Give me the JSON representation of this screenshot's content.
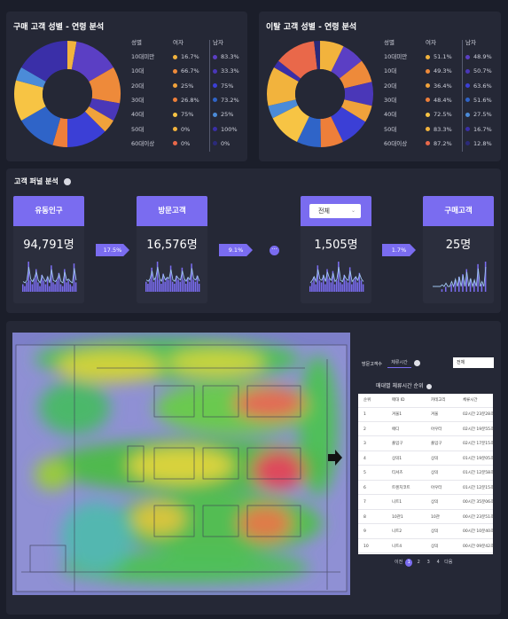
{
  "donut_left": {
    "title": "구매 고객 성별 - 연령 분석",
    "headers": [
      "성별",
      "여자",
      "남자"
    ],
    "rows": [
      {
        "age": "10대미만",
        "female": "16.7%",
        "male": "83.3%"
      },
      {
        "age": "10대",
        "female": "66.7%",
        "male": "33.3%"
      },
      {
        "age": "20대",
        "female": "25%",
        "male": "75%"
      },
      {
        "age": "30대",
        "female": "26.8%",
        "male": "73.2%"
      },
      {
        "age": "40대",
        "female": "75%",
        "male": "25%"
      },
      {
        "age": "50대",
        "female": "0%",
        "male": "100%"
      },
      {
        "age": "60대이상",
        "female": "0%",
        "male": "0%"
      }
    ]
  },
  "donut_right": {
    "title": "이탈 고객 성별 - 연령 분석",
    "headers": [
      "성별",
      "여자",
      "남자"
    ],
    "rows": [
      {
        "age": "10대미만",
        "female": "51.1%",
        "male": "48.9%"
      },
      {
        "age": "10대",
        "female": "49.3%",
        "male": "50.7%"
      },
      {
        "age": "20대",
        "female": "36.4%",
        "male": "63.6%"
      },
      {
        "age": "30대",
        "female": "48.4%",
        "male": "51.6%"
      },
      {
        "age": "40대",
        "female": "72.5%",
        "male": "27.5%"
      },
      {
        "age": "50대",
        "female": "83.3%",
        "male": "16.7%"
      },
      {
        "age": "60대이상",
        "female": "87.2%",
        "male": "12.8%"
      }
    ]
  },
  "colors": {
    "female_dots": [
      "#f2b33d",
      "#ee8a3a",
      "#f0a23b",
      "#ee7f3a",
      "#f7c444",
      "#f2b33d",
      "#e9684a"
    ],
    "male_dots": [
      "#5b3fc4",
      "#4a37b8",
      "#3b3fd6",
      "#2f64c8",
      "#4b8bd8",
      "#3a2fa8",
      "#2b2a7a"
    ],
    "accent": "#7a6cf0"
  },
  "funnel": {
    "title": "고객 퍼널 분석",
    "stages": [
      {
        "label": "유동인구",
        "value": "94,791명"
      },
      {
        "label": "방문고객",
        "value": "16,576명"
      },
      {
        "label": "",
        "value": "1,505명"
      },
      {
        "label": "구매고객",
        "value": "25명"
      }
    ],
    "select_value": "전체",
    "rates": [
      "17.5%",
      "9.1%",
      "1.7%"
    ]
  },
  "heatmap": {
    "filter_label": "방문고객수",
    "filter_tab": "체류시간",
    "filter_select": "전체",
    "ranking_title": "매대별 체류시간 순위",
    "columns": [
      "순위",
      "매대 ID",
      "카테고리",
      "체류시간"
    ],
    "rows": [
      [
        "1",
        "겨울1",
        "겨울",
        "02시간 23분28초"
      ],
      [
        "2",
        "애디",
        "아우터",
        "02시간 19분55초"
      ],
      [
        "3",
        "출입구",
        "출입구",
        "02시간 17분15초"
      ],
      [
        "4",
        "상의1",
        "상의",
        "01시간 19분05초"
      ],
      [
        "5",
        "티셔츠",
        "상의",
        "01시간 12분58초"
      ],
      [
        "6",
        "트렌치코트",
        "아우터",
        "01시간 12분15초"
      ],
      [
        "7",
        "니트1",
        "상의",
        "00시간 35분06초"
      ],
      [
        "8",
        "10관1",
        "10관",
        "00시간 23분51초"
      ],
      [
        "9",
        "니트2",
        "상의",
        "00시간 10분40초"
      ],
      [
        "10",
        "니트4",
        "상의",
        "00시간 09분42초"
      ]
    ],
    "pagination": {
      "prev": "이전",
      "pages": [
        "1",
        "2",
        "3",
        "4"
      ],
      "next": "다음",
      "current": "1"
    }
  }
}
